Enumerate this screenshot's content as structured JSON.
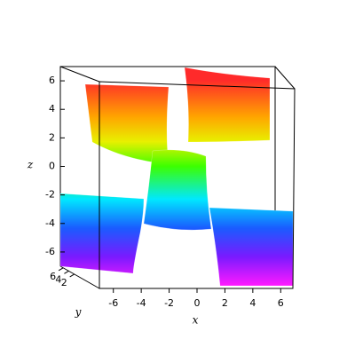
{
  "chart_data": {
    "type": "surface3d",
    "xlabel": "x",
    "ylabel": "y",
    "zlabel": "z",
    "xlim": [
      -7,
      7
    ],
    "xticks": [
      -6,
      -4,
      -2,
      0,
      2,
      4,
      6
    ],
    "ylim": [
      -7,
      7
    ],
    "yticks": [
      2,
      4,
      6
    ],
    "zlim": [
      -7,
      7
    ],
    "zticks": [
      -6,
      -4,
      -2,
      0,
      2,
      4,
      6
    ]
  }
}
